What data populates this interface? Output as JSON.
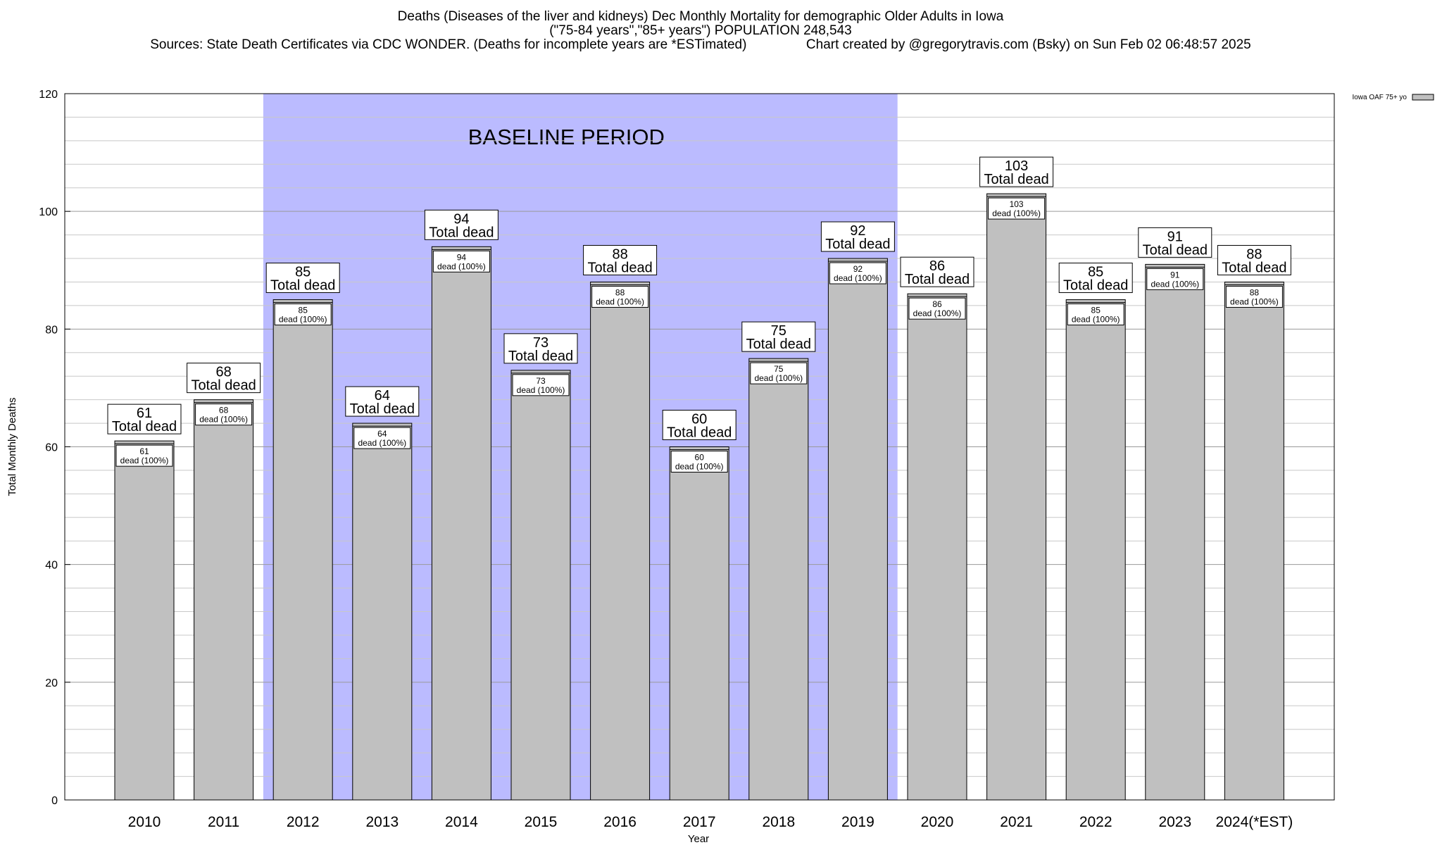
{
  "chart_data": {
    "type": "bar",
    "title_lines": [
      "Deaths (Diseases of the liver and kidneys) Dec Monthly Mortality for demographic Older Adults in Iowa",
      "(\"75-84 years\",\"85+ years\") POPULATION 248,543",
      "Sources: State Death Certificates via CDC WONDER. (Deaths for incomplete years are *ESTimated)                Chart created by @gregorytravis.com (Bsky) on Sun Feb 02 06:48:57 2025"
    ],
    "xlabel": "Year",
    "ylabel": "Total Monthly Deaths",
    "ylim": [
      0,
      120
    ],
    "yticks": [
      0,
      20,
      40,
      60,
      80,
      100,
      120
    ],
    "grid": true,
    "legend": {
      "label": "Iowa OAF 75+ yo",
      "placement": "top-right",
      "color": "#c0c0c0"
    },
    "baseline_label": "BASELINE PERIOD",
    "baseline_range": [
      "2012",
      "2019"
    ],
    "baseline_color": "#bbbbff",
    "bar_color": "#c0c0c0",
    "top_label_suffix": "Total dead",
    "inner_label_suffix": "dead (100%)",
    "categories": [
      "2010",
      "2011",
      "2012",
      "2013",
      "2014",
      "2015",
      "2016",
      "2017",
      "2018",
      "2019",
      "2020",
      "2021",
      "2022",
      "2023",
      "2024(*EST)"
    ],
    "series": [
      {
        "values": [
          61,
          68,
          85,
          64,
          94,
          73,
          88,
          60,
          75,
          92,
          86,
          103,
          85,
          91,
          88
        ]
      }
    ]
  }
}
